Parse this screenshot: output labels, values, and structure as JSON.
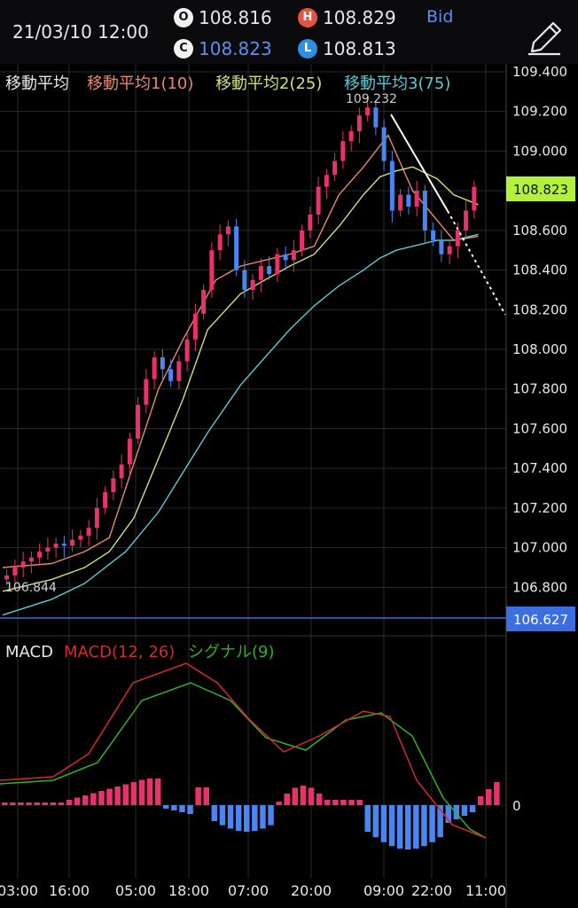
{
  "header": {
    "datetime": "21/03/10 12:00",
    "open_label": "O",
    "open_value": "108.816",
    "high_label": "H",
    "high_value": "108.829",
    "close_label": "C",
    "close_value": "108.823",
    "low_label": "L",
    "low_value": "108.813",
    "price_type": "Bid",
    "edit_icon": "pencil-icon"
  },
  "colors": {
    "up_candle": "#e8336a",
    "down_candle": "#4a86f2",
    "ma1": "#e6896b",
    "ma2": "#c9e27a",
    "ma3": "#5ec9d6",
    "macd": "#d42a2a",
    "signal": "#2ab32a",
    "current_price_bg": "#b3f23a",
    "low_line": "#3b6fe0"
  },
  "indicators": {
    "ma_title": "移動平均",
    "ma1_label": "移動平均1(10)",
    "ma2_label": "移動平均2(25)",
    "ma3_label": "移動平均3(75)",
    "macd_title": "MACD",
    "macd_label": "MACD(12, 26)",
    "signal_label": "シグナル(9)"
  },
  "chart_data": [
    {
      "type": "candlestick",
      "ylim": [
        106.56,
        109.44
      ],
      "y_ticks": [
        "109.400",
        "109.200",
        "109.000",
        "108.800",
        "108.600",
        "108.400",
        "108.200",
        "108.000",
        "107.800",
        "107.600",
        "107.400",
        "107.200",
        "107.000",
        "106.800"
      ],
      "x_ticks": [
        "03:00",
        "16:00",
        "05:00",
        "18:00",
        "07:00",
        "20:00",
        "09:00",
        "22:00",
        "11:00"
      ],
      "annotations": {
        "high_label": "109.232",
        "low_label": "106.844",
        "current_price": "108.823",
        "line_price": "106.627"
      },
      "series": [
        {
          "name": "移動平均1(10)",
          "points": [
            [
              0,
              106.9
            ],
            [
              6,
              106.92
            ],
            [
              10,
              106.98
            ],
            [
              13,
              107.05
            ],
            [
              15,
              107.3
            ],
            [
              19,
              107.8
            ],
            [
              22,
              108.05
            ],
            [
              26,
              108.35
            ],
            [
              29,
              108.42
            ],
            [
              32,
              108.45
            ],
            [
              35,
              108.48
            ],
            [
              38,
              108.52
            ],
            [
              41,
              108.78
            ],
            [
              44,
              108.92
            ],
            [
              47,
              109.08
            ],
            [
              50,
              108.8
            ],
            [
              52,
              108.7
            ],
            [
              55,
              108.55
            ],
            [
              58,
              108.57
            ]
          ]
        },
        {
          "name": "移動平均2(25)",
          "points": [
            [
              0,
              106.78
            ],
            [
              6,
              106.84
            ],
            [
              10,
              106.9
            ],
            [
              13,
              106.98
            ],
            [
              16,
              107.15
            ],
            [
              19,
              107.45
            ],
            [
              22,
              107.75
            ],
            [
              25,
              108.1
            ],
            [
              29,
              108.28
            ],
            [
              32,
              108.35
            ],
            [
              35,
              108.42
            ],
            [
              38,
              108.48
            ],
            [
              41,
              108.62
            ],
            [
              44,
              108.78
            ],
            [
              46,
              108.87
            ],
            [
              48,
              108.9
            ],
            [
              50,
              108.92
            ],
            [
              53,
              108.86
            ],
            [
              55,
              108.78
            ],
            [
              58,
              108.73
            ]
          ]
        },
        {
          "name": "移動平均3(75)",
          "points": [
            [
              0,
              106.66
            ],
            [
              6,
              106.74
            ],
            [
              10,
              106.82
            ],
            [
              15,
              106.98
            ],
            [
              19,
              107.18
            ],
            [
              22,
              107.38
            ],
            [
              25,
              107.58
            ],
            [
              29,
              107.82
            ],
            [
              32,
              107.96
            ],
            [
              35,
              108.1
            ],
            [
              38,
              108.22
            ],
            [
              41,
              108.32
            ],
            [
              44,
              108.4
            ],
            [
              46,
              108.46
            ],
            [
              48,
              108.5
            ],
            [
              50,
              108.52
            ],
            [
              53,
              108.55
            ],
            [
              55,
              108.55
            ],
            [
              58,
              108.58
            ]
          ]
        }
      ]
    },
    {
      "type": "bar",
      "title": "MACD",
      "y_tick": "0",
      "series": [
        {
          "name": "MACD(12, 26)"
        },
        {
          "name": "シグナル(9)"
        }
      ]
    }
  ]
}
